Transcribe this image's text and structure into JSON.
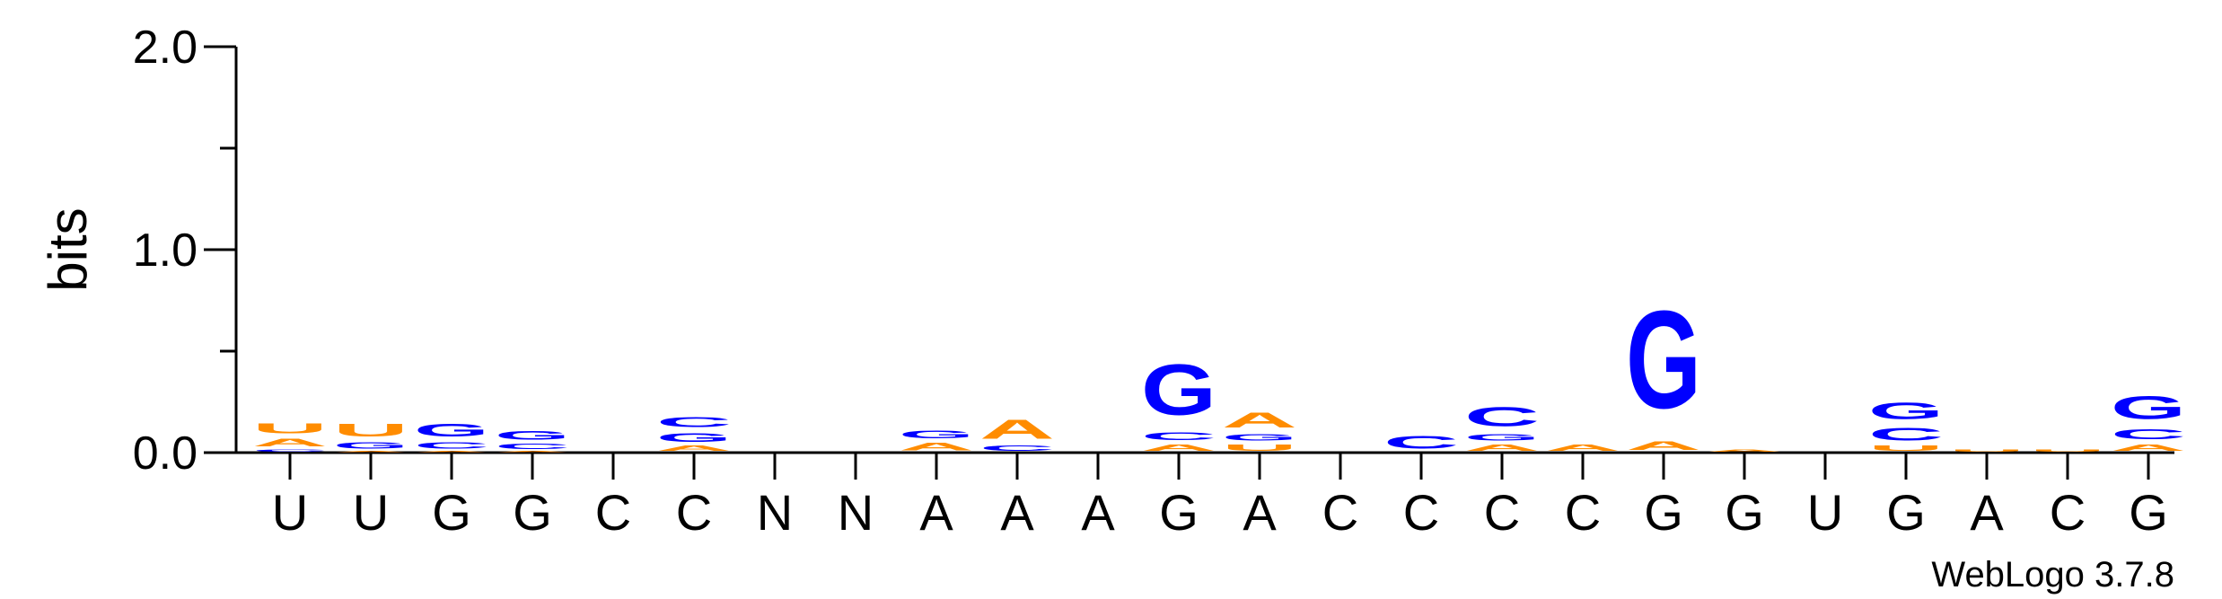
{
  "chart_data": {
    "type": "sequence-logo",
    "ylabel": "bits",
    "ylim": [
      0,
      2.0
    ],
    "y_ticks": [
      "0.0",
      "1.0",
      "2.0"
    ],
    "credit": "WebLogo 3.7.8",
    "colors": {
      "A": "#ff8c00",
      "U": "#ff8c00",
      "C": "#0000ff",
      "G": "#0000ff"
    },
    "x_labels": [
      "U",
      "U",
      "G",
      "G",
      "C",
      "C",
      "N",
      "N",
      "A",
      "A",
      "A",
      "G",
      "A",
      "C",
      "C",
      "C",
      "C",
      "G",
      "G",
      "U",
      "G",
      "A",
      "C",
      "G"
    ],
    "stacks": [
      [
        {
          "l": "C",
          "h": 0.02
        },
        {
          "l": "A",
          "h": 0.06
        },
        {
          "l": "U",
          "h": 0.08
        }
      ],
      [
        {
          "l": "A",
          "h": 0.01
        },
        {
          "l": "G",
          "h": 0.05
        },
        {
          "l": "U",
          "h": 0.1
        }
      ],
      [
        {
          "l": "A",
          "h": 0.01
        },
        {
          "l": "C",
          "h": 0.05
        },
        {
          "l": "G",
          "h": 0.1
        }
      ],
      [
        {
          "l": "A",
          "h": 0.01
        },
        {
          "l": "C",
          "h": 0.04
        },
        {
          "l": "G",
          "h": 0.07
        }
      ],
      [],
      [
        {
          "l": "A",
          "h": 0.04
        },
        {
          "l": "G",
          "h": 0.07
        },
        {
          "l": "C",
          "h": 0.08
        }
      ],
      [],
      [],
      [
        {
          "l": "A",
          "h": 0.06
        },
        {
          "l": "G",
          "h": 0.06
        }
      ],
      [
        {
          "l": "C",
          "h": 0.04
        },
        {
          "l": "A",
          "h": 0.15
        }
      ],
      [],
      [
        {
          "l": "A",
          "h": 0.05
        },
        {
          "l": "C",
          "h": 0.06
        },
        {
          "l": "G",
          "h": 0.4
        }
      ],
      [
        {
          "l": "U",
          "h": 0.05
        },
        {
          "l": "G",
          "h": 0.05
        },
        {
          "l": "A",
          "h": 0.12
        }
      ],
      [],
      [
        {
          "l": "C",
          "h": 0.1
        }
      ],
      [
        {
          "l": "A",
          "h": 0.05
        },
        {
          "l": "G",
          "h": 0.05
        },
        {
          "l": "C",
          "h": 0.15
        }
      ],
      [
        {
          "l": "A",
          "h": 0.05
        }
      ],
      [
        {
          "l": "A",
          "h": 0.07
        },
        {
          "l": "G",
          "h": 0.77
        }
      ],
      [
        {
          "l": "A",
          "h": 0.02
        }
      ],
      [],
      [
        {
          "l": "U",
          "h": 0.04
        },
        {
          "l": "C",
          "h": 0.1
        },
        {
          "l": "G",
          "h": 0.13
        }
      ],
      [
        {
          "l": "U",
          "h": 0.02
        }
      ],
      [
        {
          "l": "U",
          "h": 0.02
        }
      ],
      [
        {
          "l": "A",
          "h": 0.05
        },
        {
          "l": "C",
          "h": 0.08
        },
        {
          "l": "G",
          "h": 0.18
        }
      ]
    ]
  }
}
